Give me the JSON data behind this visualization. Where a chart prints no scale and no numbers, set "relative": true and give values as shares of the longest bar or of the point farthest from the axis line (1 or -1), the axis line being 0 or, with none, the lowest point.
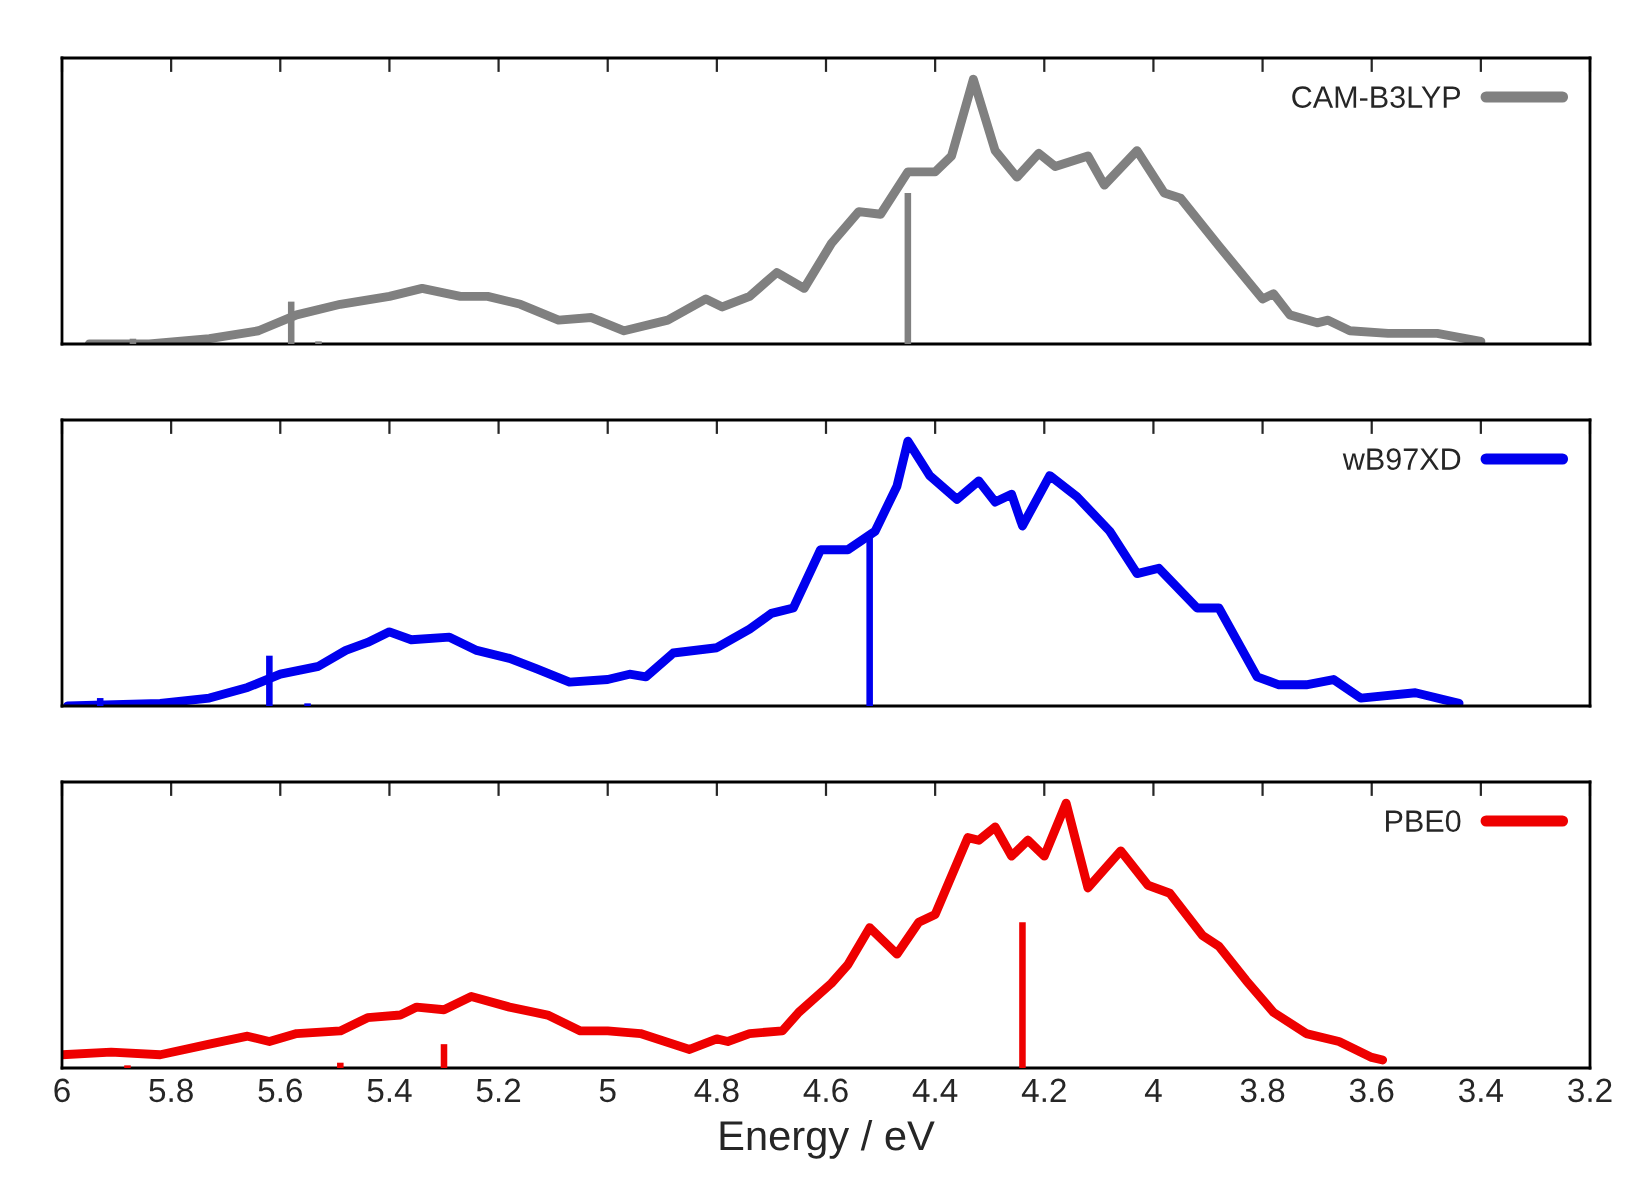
{
  "chart_data": [
    {
      "type": "line",
      "relative": true,
      "xlim": [
        6,
        3.2
      ],
      "xticks": [
        6,
        5.8,
        5.6,
        5.4,
        5.2,
        5,
        4.8,
        4.6,
        4.4,
        4.2,
        4,
        3.8,
        3.6,
        3.4,
        3.2
      ],
      "tick_labels": false,
      "legend": "top right",
      "grid": false,
      "series": [
        {
          "name": "CAM-B3LYP",
          "color": "#808080",
          "x": [
            5.95,
            5.84,
            5.73,
            5.64,
            5.57,
            5.49,
            5.4,
            5.34,
            5.27,
            5.22,
            5.16,
            5.09,
            5.03,
            4.97,
            4.89,
            4.82,
            4.79,
            4.74,
            4.69,
            4.64,
            4.59,
            4.54,
            4.5,
            4.45,
            4.4,
            4.37,
            4.33,
            4.29,
            4.25,
            4.21,
            4.18,
            4.12,
            4.09,
            4.03,
            3.98,
            3.95,
            3.88,
            3.8,
            3.78,
            3.75,
            3.7,
            3.68,
            3.64,
            3.57,
            3.48,
            3.4
          ],
          "values": [
            0,
            0,
            0.02,
            0.05,
            0.11,
            0.15,
            0.18,
            0.21,
            0.18,
            0.18,
            0.15,
            0.09,
            0.1,
            0.05,
            0.09,
            0.17,
            0.14,
            0.18,
            0.27,
            0.21,
            0.38,
            0.5,
            0.49,
            0.65,
            0.65,
            0.71,
            1.0,
            0.73,
            0.63,
            0.72,
            0.67,
            0.71,
            0.6,
            0.73,
            0.57,
            0.55,
            0.37,
            0.17,
            0.19,
            0.11,
            0.08,
            0.09,
            0.05,
            0.04,
            0.04,
            0.01
          ]
        },
        {
          "type": "bar",
          "color": "#808080",
          "x": [
            5.87,
            5.58,
            5.53,
            4.45
          ],
          "values": [
            0.02,
            0.16,
            0.01,
            0.57
          ]
        }
      ]
    },
    {
      "type": "line",
      "relative": true,
      "xlim": [
        6,
        3.2
      ],
      "xticks": [
        6,
        5.8,
        5.6,
        5.4,
        5.2,
        5,
        4.8,
        4.6,
        4.4,
        4.2,
        4,
        3.8,
        3.6,
        3.4,
        3.2
      ],
      "tick_labels": false,
      "legend": "top right",
      "grid": false,
      "series": [
        {
          "name": "wB97XD",
          "color": "#0000ee",
          "x": [
            5.99,
            5.82,
            5.73,
            5.66,
            5.6,
            5.53,
            5.48,
            5.44,
            5.4,
            5.36,
            5.29,
            5.24,
            5.18,
            5.13,
            5.07,
            5.0,
            4.96,
            4.93,
            4.88,
            4.8,
            4.74,
            4.7,
            4.66,
            4.61,
            4.56,
            4.51,
            4.47,
            4.45,
            4.41,
            4.36,
            4.32,
            4.29,
            4.26,
            4.24,
            4.19,
            4.14,
            4.08,
            4.03,
            3.99,
            3.92,
            3.88,
            3.81,
            3.77,
            3.72,
            3.67,
            3.62,
            3.52,
            3.44
          ],
          "values": [
            0,
            0.01,
            0.03,
            0.07,
            0.12,
            0.15,
            0.21,
            0.24,
            0.28,
            0.25,
            0.26,
            0.21,
            0.18,
            0.14,
            0.09,
            0.1,
            0.12,
            0.11,
            0.2,
            0.22,
            0.29,
            0.35,
            0.37,
            0.59,
            0.59,
            0.66,
            0.83,
            1.0,
            0.87,
            0.78,
            0.85,
            0.77,
            0.8,
            0.68,
            0.87,
            0.79,
            0.66,
            0.5,
            0.52,
            0.37,
            0.37,
            0.11,
            0.08,
            0.08,
            0.1,
            0.03,
            0.05,
            0.01
          ]
        },
        {
          "type": "bar",
          "color": "#0000ee",
          "x": [
            5.93,
            5.62,
            5.55,
            4.52
          ],
          "values": [
            0.03,
            0.19,
            0.01,
            0.64
          ]
        }
      ]
    },
    {
      "type": "line",
      "relative": true,
      "xlim": [
        6,
        3.2
      ],
      "xticks": [
        6,
        5.8,
        5.6,
        5.4,
        5.2,
        5,
        4.8,
        4.6,
        4.4,
        4.2,
        4,
        3.8,
        3.6,
        3.4,
        3.2
      ],
      "tick_labels": "x",
      "xlabel": "Energy / eV",
      "legend": "top right",
      "grid": false,
      "series": [
        {
          "name": "PBE0",
          "color": "#ee0000",
          "x": [
            6.0,
            5.91,
            5.82,
            5.73,
            5.66,
            5.62,
            5.57,
            5.49,
            5.44,
            5.38,
            5.35,
            5.3,
            5.25,
            5.18,
            5.11,
            5.05,
            5.0,
            4.94,
            4.85,
            4.8,
            4.78,
            4.74,
            4.68,
            4.65,
            4.59,
            4.56,
            4.52,
            4.47,
            4.43,
            4.4,
            4.34,
            4.32,
            4.29,
            4.26,
            4.23,
            4.2,
            4.16,
            4.12,
            4.06,
            4.01,
            3.97,
            3.91,
            3.88,
            3.83,
            3.78,
            3.72,
            3.66,
            3.6,
            3.58
          ],
          "values": [
            0.05,
            0.06,
            0.05,
            0.09,
            0.12,
            0.1,
            0.13,
            0.14,
            0.19,
            0.2,
            0.23,
            0.22,
            0.27,
            0.23,
            0.2,
            0.14,
            0.14,
            0.13,
            0.07,
            0.11,
            0.1,
            0.13,
            0.14,
            0.21,
            0.32,
            0.39,
            0.53,
            0.43,
            0.55,
            0.58,
            0.87,
            0.86,
            0.91,
            0.8,
            0.86,
            0.8,
            1.0,
            0.68,
            0.82,
            0.69,
            0.66,
            0.5,
            0.46,
            0.33,
            0.21,
            0.13,
            0.1,
            0.04,
            0.03
          ]
        },
        {
          "type": "bar",
          "color": "#ee0000",
          "x": [
            5.88,
            5.49,
            5.3,
            4.24
          ],
          "values": [
            0.01,
            0.02,
            0.09,
            0.55
          ]
        }
      ]
    }
  ]
}
